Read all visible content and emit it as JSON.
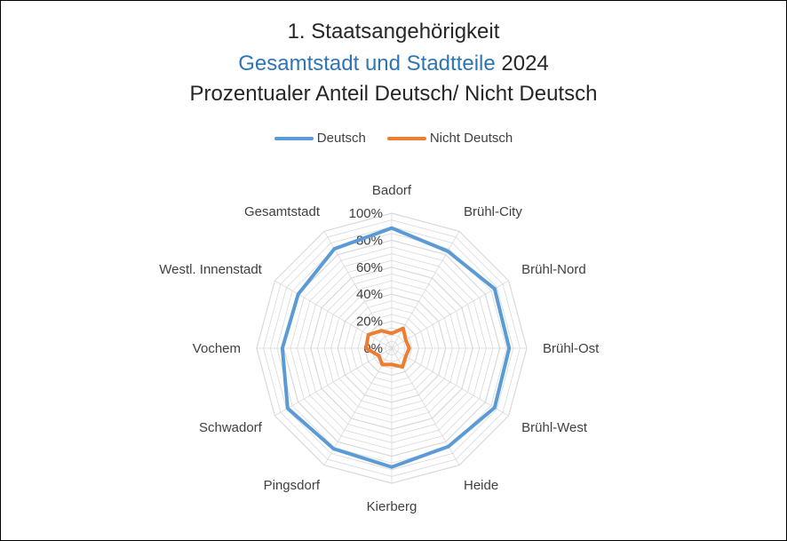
{
  "title": {
    "line1": "1. Staatsangehörigkeit",
    "line2_highlight": "Gesamtstadt und Stadtteile",
    "line2_rest": " 2024",
    "line3": "Prozentualer Anteil Deutsch/ Nicht Deutsch"
  },
  "colors": {
    "deutsch": "#5b9bd5",
    "nicht_deutsch": "#ed7d31",
    "grid": "#d9d9d9",
    "highlight": "#2e75b6"
  },
  "chart_data": {
    "type": "radar",
    "title": "1. Staatsangehörigkeit Gesamtstadt und Stadtteile 2024 Prozentualer Anteil Deutsch/ Nicht Deutsch",
    "categories": [
      "Badorf",
      "Brühl-City",
      "Brühl-Nord",
      "Brühl-Ost",
      "Brühl-West",
      "Heide",
      "Kierberg",
      "Pingsdorf",
      "Schwadorf",
      "Vochem",
      "Westl. Innenstadt",
      "Gesamtstadt"
    ],
    "series": [
      {
        "name": "Deutsch",
        "values": [
          89,
          83,
          88,
          87,
          88,
          84,
          88,
          86,
          89,
          81,
          80,
          85
        ]
      },
      {
        "name": "Nicht Deutsch",
        "values": [
          11,
          17,
          12,
          13,
          12,
          16,
          12,
          14,
          11,
          19,
          20,
          15
        ]
      }
    ],
    "ticks": [
      "0%",
      "20%",
      "40%",
      "60%",
      "80%",
      "100%"
    ],
    "ylim": [
      0,
      100
    ],
    "grid_step": 5,
    "legend_position": "top"
  }
}
